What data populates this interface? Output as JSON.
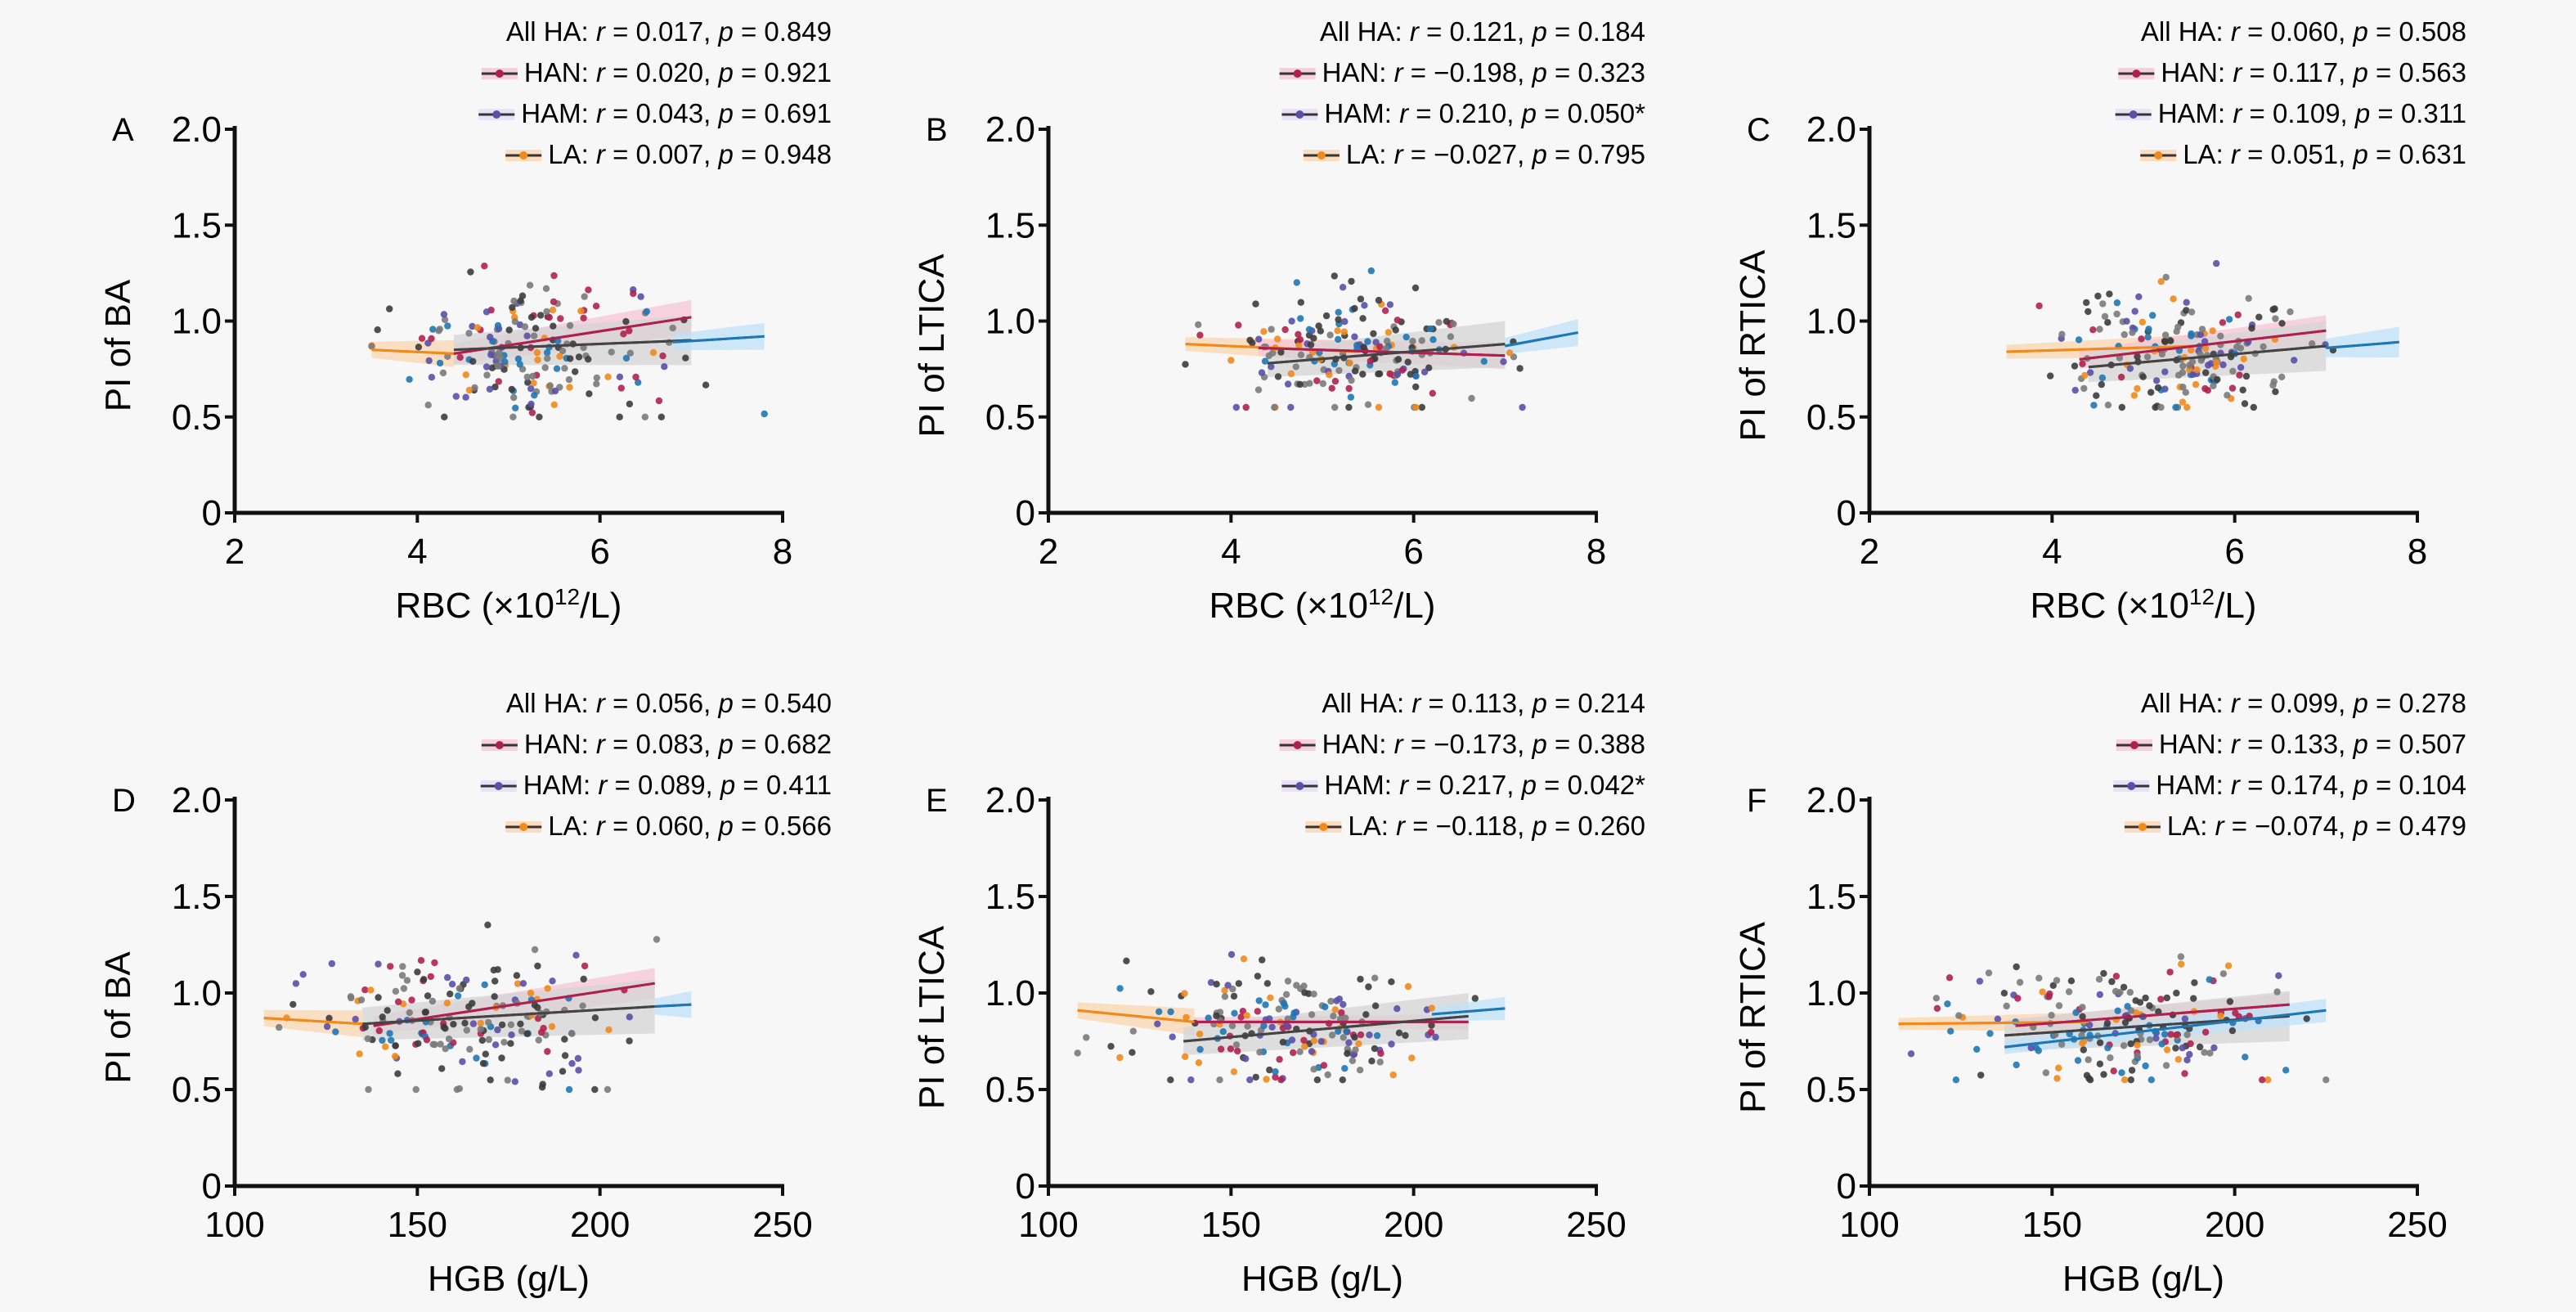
{
  "figure": {
    "y_axis_ticks": [
      "0",
      "0.5",
      "1.0",
      "1.5",
      "2.0"
    ],
    "group_colors": {
      "HAN": "#b0204f",
      "HAM": "#5a4fa8",
      "LA": "#f08a1c",
      "All HA": "#444444",
      "extra": "#1f77b4"
    },
    "band_colors": {
      "HAN": "#f6c4d6",
      "HAM": "#e2dcf6",
      "LA": "#fbd5b0",
      "All HA": "#d4d4d4",
      "extra": "#bfe2f8"
    }
  },
  "chart_data": [
    {
      "panel": "A",
      "type": "scatter",
      "xlabel": "RBC (×10¹²/L)",
      "xlabel_main": "RBC (×10",
      "xlabel_sup": "12",
      "xlabel_tail": "/L)",
      "ylabel": "PI of BA",
      "xlim": [
        2,
        8
      ],
      "ylim": [
        0,
        2.0
      ],
      "x_ticks": [
        "2",
        "4",
        "6",
        "8"
      ],
      "y_ticks": [
        "0",
        "0.5",
        "1.0",
        "1.5",
        "2.0"
      ],
      "legend": [
        {
          "group": "All HA",
          "r": "0.017",
          "p": "0.849",
          "text": "All HA: r = 0.017, p = 0.849"
        },
        {
          "group": "HAN",
          "r": "0.020",
          "p": "0.921",
          "text": "HAN: r = 0.020, p = 0.921"
        },
        {
          "group": "HAM",
          "r": "0.043",
          "p": "0.691",
          "text": "HAM: r = 0.043, p = 0.691"
        },
        {
          "group": "LA",
          "r": "0.007",
          "p": "0.948",
          "text": "LA: r = 0.007, p = 0.948"
        }
      ],
      "fits": [
        {
          "group": "LA",
          "x": [
            3.5,
            4.4
          ],
          "y": [
            0.85,
            0.83
          ],
          "band": 0.07
        },
        {
          "group": "HAN",
          "x": [
            4.4,
            7.0
          ],
          "y": [
            0.83,
            1.02
          ],
          "band": 0.09
        },
        {
          "group": "All HA",
          "x": [
            4.4,
            7.0
          ],
          "y": [
            0.85,
            0.9
          ],
          "band": 0.13
        },
        {
          "group": "extra",
          "x": [
            6.8,
            7.8
          ],
          "y": [
            0.89,
            0.92
          ],
          "band": 0.07
        }
      ],
      "cloud": {
        "x_center": 5.3,
        "x_spread": 0.75,
        "y_center": 0.86,
        "y_spread": 0.18,
        "x_min": 3.5,
        "x_max": 7.8,
        "y_min": 0.5,
        "y_max": 1.45,
        "n": 190,
        "seed": 11
      }
    },
    {
      "panel": "B",
      "type": "scatter",
      "xlabel": "RBC (×10¹²/L)",
      "xlabel_main": "RBC (×10",
      "xlabel_sup": "12",
      "xlabel_tail": "/L)",
      "ylabel": "PI of LTICA",
      "xlim": [
        2,
        8
      ],
      "ylim": [
        0,
        2.0
      ],
      "x_ticks": [
        "2",
        "4",
        "6",
        "8"
      ],
      "y_ticks": [
        "0",
        "0.5",
        "1.0",
        "1.5",
        "2.0"
      ],
      "legend": [
        {
          "group": "All HA",
          "r": "0.121",
          "p": "0.184",
          "text": "All HA: r = 0.121, p = 0.184"
        },
        {
          "group": "HAN",
          "r": "−0.198",
          "p": "0.323",
          "text": "HAN: r = −0.198, p = 0.323"
        },
        {
          "group": "HAM",
          "r": "0.210",
          "p": "0.050*",
          "text": "HAM: r = 0.210, p = 0.050*"
        },
        {
          "group": "LA",
          "r": "−0.027",
          "p": "0.795",
          "text": "LA: r = −0.027, p = 0.795"
        }
      ],
      "fits": [
        {
          "group": "LA",
          "x": [
            3.5,
            5.4
          ],
          "y": [
            0.88,
            0.84
          ],
          "band": 0.06
        },
        {
          "group": "HAN",
          "x": [
            4.3,
            7.0
          ],
          "y": [
            0.86,
            0.82
          ],
          "band": 0.07
        },
        {
          "group": "All HA",
          "x": [
            4.4,
            7.0
          ],
          "y": [
            0.78,
            0.88
          ],
          "band": 0.12
        },
        {
          "group": "extra",
          "x": [
            7.0,
            7.8
          ],
          "y": [
            0.87,
            0.94
          ],
          "band": 0.07
        }
      ],
      "cloud": {
        "x_center": 5.4,
        "x_spread": 0.7,
        "y_center": 0.84,
        "y_spread": 0.16,
        "x_min": 3.5,
        "x_max": 7.8,
        "y_min": 0.55,
        "y_max": 1.35,
        "n": 190,
        "seed": 23
      }
    },
    {
      "panel": "C",
      "type": "scatter",
      "xlabel": "RBC (×10¹²/L)",
      "xlabel_main": "RBC (×10",
      "xlabel_sup": "12",
      "xlabel_tail": "/L)",
      "ylabel": "PI of RTICA",
      "xlim": [
        2,
        8
      ],
      "ylim": [
        0,
        2.0
      ],
      "x_ticks": [
        "2",
        "4",
        "6",
        "8"
      ],
      "y_ticks": [
        "0",
        "0.5",
        "1.0",
        "1.5",
        "2.0"
      ],
      "legend": [
        {
          "group": "All HA",
          "r": "0.060",
          "p": "0.508",
          "text": "All HA: r = 0.060, p = 0.508"
        },
        {
          "group": "HAN",
          "r": "0.117",
          "p": "0.563",
          "text": "HAN: r = 0.117, p = 0.563"
        },
        {
          "group": "HAM",
          "r": "0.109",
          "p": "0.311",
          "text": "HAM: r = 0.109, p = 0.311"
        },
        {
          "group": "LA",
          "r": "0.051",
          "p": "0.631",
          "text": "LA: r = 0.051, p = 0.631"
        }
      ],
      "fits": [
        {
          "group": "LA",
          "x": [
            3.5,
            5.6
          ],
          "y": [
            0.84,
            0.87
          ],
          "band": 0.06
        },
        {
          "group": "HAN",
          "x": [
            4.3,
            7.0
          ],
          "y": [
            0.8,
            0.95
          ],
          "band": 0.08
        },
        {
          "group": "All HA",
          "x": [
            4.4,
            7.0
          ],
          "y": [
            0.76,
            0.87
          ],
          "band": 0.13
        },
        {
          "group": "extra",
          "x": [
            7.0,
            7.8
          ],
          "y": [
            0.86,
            0.89
          ],
          "band": 0.08
        }
      ],
      "cloud": {
        "x_center": 5.4,
        "x_spread": 0.7,
        "y_center": 0.84,
        "y_spread": 0.16,
        "x_min": 3.5,
        "x_max": 7.8,
        "y_min": 0.55,
        "y_max": 1.3,
        "n": 190,
        "seed": 37
      }
    },
    {
      "panel": "D",
      "type": "scatter",
      "xlabel": "HGB (g/L)",
      "xlabel_main": "HGB (g/L)",
      "xlabel_sup": "",
      "xlabel_tail": "",
      "ylabel": "PI of BA",
      "xlim": [
        100,
        250
      ],
      "ylim": [
        0,
        2.0
      ],
      "x_ticks": [
        "100",
        "150",
        "200",
        "250"
      ],
      "y_ticks": [
        "0",
        "0.5",
        "1.0",
        "1.5",
        "2.0"
      ],
      "legend": [
        {
          "group": "All HA",
          "r": "0.056",
          "p": "0.540",
          "text": "All HA: r = 0.056, p = 0.540"
        },
        {
          "group": "HAN",
          "r": "0.083",
          "p": "0.682",
          "text": "HAN: r = 0.083, p = 0.682"
        },
        {
          "group": "HAM",
          "r": "0.089",
          "p": "0.411",
          "text": "HAM: r = 0.089, p = 0.411"
        },
        {
          "group": "LA",
          "r": "0.060",
          "p": "0.566",
          "text": "LA: r = 0.060, p = 0.566"
        }
      ],
      "fits": [
        {
          "group": "LA",
          "x": [
            108,
            135
          ],
          "y": [
            0.87,
            0.84
          ],
          "band": 0.07
        },
        {
          "group": "HAN",
          "x": [
            138,
            215
          ],
          "y": [
            0.83,
            1.05
          ],
          "band": 0.08
        },
        {
          "group": "All HA",
          "x": [
            135,
            215
          ],
          "y": [
            0.84,
            0.93
          ],
          "band": 0.14
        },
        {
          "group": "extra",
          "x": [
            215,
            225
          ],
          "y": [
            0.93,
            0.94
          ],
          "band": 0.07
        }
      ],
      "cloud": {
        "x_center": 163,
        "x_spread": 22,
        "y_center": 0.86,
        "y_spread": 0.18,
        "x_min": 108,
        "x_max": 225,
        "y_min": 0.5,
        "y_max": 1.45,
        "n": 190,
        "seed": 53
      }
    },
    {
      "panel": "E",
      "type": "scatter",
      "xlabel": "HGB (g/L)",
      "xlabel_main": "HGB (g/L)",
      "xlabel_sup": "",
      "xlabel_tail": "",
      "ylabel": "PI of LTICA",
      "xlim": [
        100,
        250
      ],
      "ylim": [
        0,
        2.0
      ],
      "x_ticks": [
        "100",
        "150",
        "200",
        "250"
      ],
      "y_ticks": [
        "0",
        "0.5",
        "1.0",
        "1.5",
        "2.0"
      ],
      "legend": [
        {
          "group": "All HA",
          "r": "0.113",
          "p": "0.214",
          "text": "All HA: r = 0.113, p = 0.214"
        },
        {
          "group": "HAN",
          "r": "−0.173",
          "p": "0.388",
          "text": "HAN: r = −0.173, p = 0.388"
        },
        {
          "group": "HAM",
          "r": "0.217",
          "p": "0.042*",
          "text": "HAM: r = 0.217, p = 0.042*"
        },
        {
          "group": "LA",
          "r": "−0.118",
          "p": "0.260",
          "text": "LA: r = −0.118, p = 0.260"
        }
      ],
      "fits": [
        {
          "group": "LA",
          "x": [
            108,
            140
          ],
          "y": [
            0.91,
            0.85
          ],
          "band": 0.07
        },
        {
          "group": "HAN",
          "x": [
            140,
            215
          ],
          "y": [
            0.85,
            0.85
          ],
          "band": 0.04
        },
        {
          "group": "All HA",
          "x": [
            137,
            215
          ],
          "y": [
            0.75,
            0.88
          ],
          "band": 0.12
        },
        {
          "group": "extra",
          "x": [
            205,
            225
          ],
          "y": [
            0.89,
            0.92
          ],
          "band": 0.06
        }
      ],
      "cloud": {
        "x_center": 165,
        "x_spread": 22,
        "y_center": 0.84,
        "y_spread": 0.16,
        "x_min": 108,
        "x_max": 225,
        "y_min": 0.55,
        "y_max": 1.35,
        "n": 190,
        "seed": 71
      }
    },
    {
      "panel": "F",
      "type": "scatter",
      "xlabel": "HGB (g/L)",
      "xlabel_main": "HGB (g/L)",
      "xlabel_sup": "",
      "xlabel_tail": "",
      "ylabel": "PI of RTICA",
      "xlim": [
        100,
        250
      ],
      "ylim": [
        0,
        2.0
      ],
      "x_ticks": [
        "100",
        "150",
        "200",
        "250"
      ],
      "y_ticks": [
        "0",
        "0.5",
        "1.0",
        "1.5",
        "2.0"
      ],
      "legend": [
        {
          "group": "All HA",
          "r": "0.099",
          "p": "0.278",
          "text": "All HA: r = 0.099, p = 0.278"
        },
        {
          "group": "HAN",
          "r": "0.133",
          "p": "0.507",
          "text": "HAN: r = 0.133, p = 0.507"
        },
        {
          "group": "HAM",
          "r": "0.174",
          "p": "0.104",
          "text": "HAM: r = 0.174, p = 0.104"
        },
        {
          "group": "LA",
          "r": "−0.074",
          "p": "0.479",
          "text": "LA: r = −0.074, p = 0.479"
        }
      ],
      "fits": [
        {
          "group": "LA",
          "x": [
            108,
            160
          ],
          "y": [
            0.84,
            0.85
          ],
          "band": 0.05
        },
        {
          "group": "HAN",
          "x": [
            140,
            215
          ],
          "y": [
            0.83,
            0.94
          ],
          "band": 0.06
        },
        {
          "group": "All HA",
          "x": [
            137,
            215
          ],
          "y": [
            0.78,
            0.88
          ],
          "band": 0.13
        },
        {
          "group": "extra",
          "x": [
            137,
            225
          ],
          "y": [
            0.72,
            0.91
          ],
          "band": 0.06
        }
      ],
      "cloud": {
        "x_center": 168,
        "x_spread": 22,
        "y_center": 0.82,
        "y_spread": 0.17,
        "x_min": 108,
        "x_max": 225,
        "y_min": 0.55,
        "y_max": 1.32,
        "n": 190,
        "seed": 97
      }
    }
  ]
}
